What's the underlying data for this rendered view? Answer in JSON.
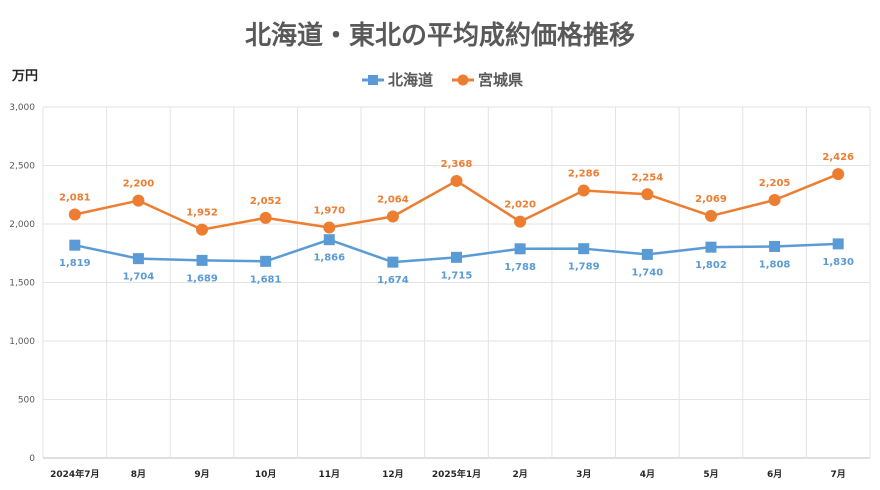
{
  "chart_data": {
    "type": "line",
    "title": "北海道・東北の平均成約価格推移",
    "ylabel": "万円",
    "xlabel": "",
    "ylim": [
      0,
      3000
    ],
    "yticks": [
      "0",
      "500",
      "1,000",
      "1,500",
      "2,000",
      "2,500",
      "3,000"
    ],
    "categories": [
      "2024年7月",
      "8月",
      "9月",
      "10月",
      "11月",
      "12月",
      "2025年1月",
      "2月",
      "3月",
      "4月",
      "5月",
      "6月",
      "7月"
    ],
    "grid": "vertical+horizontal",
    "legend": "top-center",
    "series": [
      {
        "name": "北海道",
        "color": "#5b9bd5",
        "marker": "square",
        "values": [
          1819,
          1704,
          1689,
          1681,
          1866,
          1674,
          1715,
          1788,
          1789,
          1740,
          1802,
          1808,
          1830
        ],
        "labels": [
          "1,819",
          "1,704",
          "1,689",
          "1,681",
          "1,866",
          "1,674",
          "1,715",
          "1,788",
          "1,789",
          "1,740",
          "1,802",
          "1,808",
          "1,830"
        ]
      },
      {
        "name": "宮城県",
        "color": "#ed7d31",
        "marker": "circle",
        "values": [
          2081,
          2200,
          1952,
          2052,
          1970,
          2064,
          2368,
          2020,
          2286,
          2254,
          2069,
          2205,
          2426
        ],
        "labels": [
          "2,081",
          "2,200",
          "1,952",
          "2,052",
          "1,970",
          "2,064",
          "2,368",
          "2,020",
          "2,286",
          "2,254",
          "2,069",
          "2,205",
          "2,426"
        ]
      }
    ]
  }
}
